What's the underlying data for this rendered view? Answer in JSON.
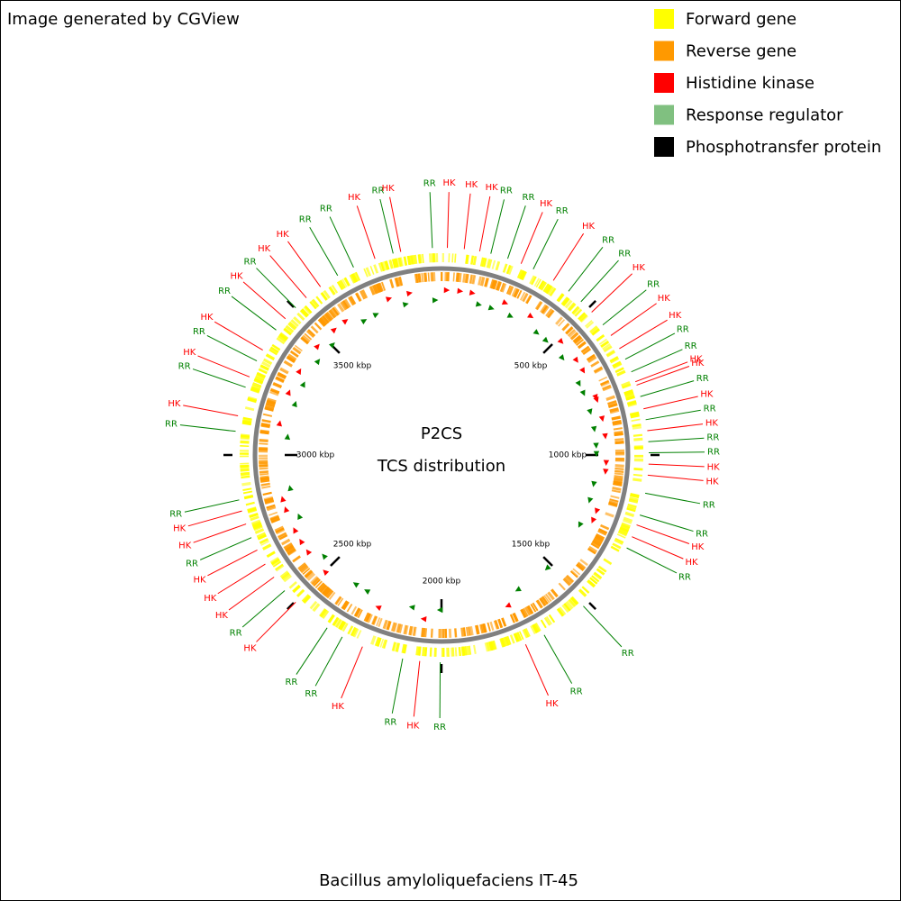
{
  "header": {
    "credit": "Image generated by CGView"
  },
  "legend": [
    {
      "label": "Forward gene",
      "color": "#ffff00"
    },
    {
      "label": "Reverse gene",
      "color": "#ff9900"
    },
    {
      "label": "Histidine kinase",
      "color": "#ff0000"
    },
    {
      "label": "Response regulator",
      "color": "#80c080"
    },
    {
      "label": "Phosphotransfer protein",
      "color": "#000000"
    }
  ],
  "map": {
    "title": "P2CS",
    "subtitle": "TCS distribution",
    "genome": "Bacillus amyloliquefaciens IT-45",
    "xlim": [
      0,
      4000
    ],
    "xticks": [
      {
        "value": 500,
        "label": "500 kbp"
      },
      {
        "value": 1000,
        "label": "1000 kbp"
      },
      {
        "value": 1500,
        "label": "1500 kbp"
      },
      {
        "value": 2000,
        "label": "2000 kbp"
      },
      {
        "value": 2500,
        "label": "2500 kbp"
      },
      {
        "value": 3000,
        "label": "3000 kbp"
      },
      {
        "value": 3500,
        "label": "3500 kbp"
      }
    ],
    "feature_colors": {
      "HK": "#ff0000",
      "RR": "#008000"
    },
    "features": [
      {
        "label": "RR",
        "position": 3972
      },
      {
        "label": "HK",
        "position": 18
      },
      {
        "label": "HK",
        "position": 70
      },
      {
        "label": "HK",
        "position": 118
      },
      {
        "label": "RR",
        "position": 153
      },
      {
        "label": "RR",
        "position": 207
      },
      {
        "label": "HK",
        "position": 251
      },
      {
        "label": "RR",
        "position": 292
      },
      {
        "label": "HK",
        "position": 363
      },
      {
        "label": "RR",
        "position": 420
      },
      {
        "label": "RR",
        "position": 470
      },
      {
        "label": "HK",
        "position": 516
      },
      {
        "label": "RR",
        "position": 568
      },
      {
        "label": "HK",
        "position": 609
      },
      {
        "label": "HK",
        "position": 657
      },
      {
        "label": "RR",
        "position": 694
      },
      {
        "label": "RR",
        "position": 737
      },
      {
        "label": "HK",
        "position": 770
      },
      {
        "label": "HK",
        "position": 781
      },
      {
        "label": "RR",
        "position": 818
      },
      {
        "label": "HK",
        "position": 857
      },
      {
        "label": "RR",
        "position": 891
      },
      {
        "label": "HK",
        "position": 925
      },
      {
        "label": "RR",
        "position": 959
      },
      {
        "label": "RR",
        "position": 993
      },
      {
        "label": "HK",
        "position": 1028
      },
      {
        "label": "HK",
        "position": 1062
      },
      {
        "label": "RR",
        "position": 1118
      },
      {
        "label": "RR",
        "position": 1187
      },
      {
        "label": "HK",
        "position": 1219
      },
      {
        "label": "HK",
        "position": 1258
      },
      {
        "label": "RR",
        "position": 1296
      },
      {
        "label": "RR",
        "position": 1520
      },
      {
        "label": "RR",
        "position": 1670
      },
      {
        "label": "HK",
        "position": 1734
      },
      {
        "label": "RR",
        "position": 2004
      },
      {
        "label": "HK",
        "position": 2067
      },
      {
        "label": "RR",
        "position": 2120
      },
      {
        "label": "HK",
        "position": 2249
      },
      {
        "label": "RR",
        "position": 2318
      },
      {
        "label": "RR",
        "position": 2372
      },
      {
        "label": "HK",
        "position": 2497
      },
      {
        "label": "RR",
        "position": 2546
      },
      {
        "label": "HK",
        "position": 2599
      },
      {
        "label": "HK",
        "position": 2647
      },
      {
        "label": "HK",
        "position": 2697
      },
      {
        "label": "RR",
        "position": 2739
      },
      {
        "label": "HK",
        "position": 2784
      },
      {
        "label": "HK",
        "position": 2826
      },
      {
        "label": "RR",
        "position": 2861
      },
      {
        "label": "RR",
        "position": 3073
      },
      {
        "label": "HK",
        "position": 3121
      },
      {
        "label": "RR",
        "position": 3212
      },
      {
        "label": "HK",
        "position": 3246
      },
      {
        "label": "RR",
        "position": 3300
      },
      {
        "label": "HK",
        "position": 3338
      },
      {
        "label": "RR",
        "position": 3412
      },
      {
        "label": "HK",
        "position": 3457
      },
      {
        "label": "RR",
        "position": 3503
      },
      {
        "label": "HK",
        "position": 3548
      },
      {
        "label": "HK",
        "position": 3603
      },
      {
        "label": "RR",
        "position": 3666
      },
      {
        "label": "RR",
        "position": 3721
      },
      {
        "label": "HK",
        "position": 3792
      },
      {
        "label": "RR",
        "position": 3850
      },
      {
        "label": "HK",
        "position": 3874
      }
    ]
  }
}
